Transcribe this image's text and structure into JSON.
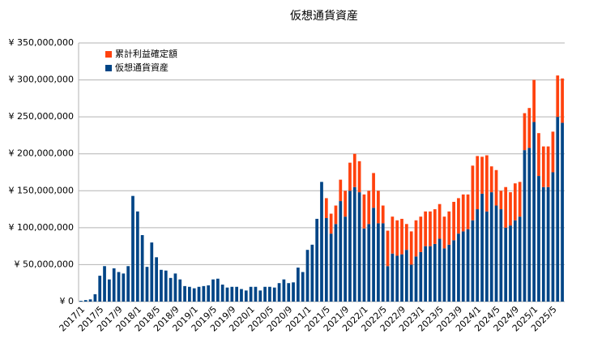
{
  "chart_data": {
    "type": "stacked_bar",
    "title": "仮想通貨資産",
    "categories": [
      "2017/1",
      null,
      null,
      null,
      "2017/5",
      null,
      null,
      null,
      "2017/9",
      null,
      null,
      null,
      "2018/1",
      null,
      null,
      null,
      "2018/5",
      null,
      null,
      null,
      "2018/9",
      null,
      null,
      null,
      "2019/1",
      null,
      null,
      null,
      "2019/5",
      null,
      null,
      null,
      "2019/9",
      null,
      null,
      null,
      "2020/1",
      null,
      null,
      null,
      "2020/5",
      null,
      null,
      null,
      "2020/9",
      null,
      null,
      null,
      "2021/1",
      null,
      null,
      null,
      "2021/5",
      null,
      null,
      null,
      "2021/9",
      null,
      null,
      null,
      "2022/1",
      null,
      null,
      null,
      "2022/5",
      null,
      null,
      null,
      "2022/9",
      null,
      null,
      null,
      "2023/1",
      null,
      null,
      null,
      "2023/5",
      null,
      null,
      null,
      "2023/9",
      null,
      null,
      null,
      "2024/1",
      null,
      null,
      null,
      "2024/5",
      null,
      null,
      null,
      "2024/9",
      null,
      null,
      null,
      "2025/1",
      null,
      null,
      null,
      "2025/5",
      null,
      null
    ],
    "series": [
      {
        "name": "仮想通貨資産",
        "color": "#004586",
        "values": [
          1000000,
          2000000,
          3000000,
          10000000,
          35000000,
          48000000,
          30000000,
          45000000,
          40000000,
          38000000,
          48000000,
          143000000,
          122000000,
          90000000,
          47000000,
          80000000,
          60000000,
          43000000,
          42000000,
          32000000,
          38000000,
          30000000,
          21000000,
          20000000,
          18000000,
          20000000,
          21000000,
          22000000,
          30000000,
          31000000,
          23000000,
          19000000,
          20000000,
          20000000,
          17000000,
          15000000,
          20000000,
          20000000,
          15000000,
          20000000,
          20000000,
          19000000,
          25000000,
          30000000,
          25000000,
          26000000,
          46000000,
          40000000,
          70000000,
          77000000,
          112000000,
          162000000,
          113000000,
          92000000,
          105000000,
          136000000,
          115000000,
          150000000,
          155000000,
          148000000,
          99000000,
          105000000,
          127000000,
          106000000,
          106000000,
          48000000,
          65000000,
          62000000,
          64000000,
          70000000,
          50000000,
          61000000,
          67000000,
          75000000,
          75000000,
          78000000,
          85000000,
          72000000,
          77000000,
          83000000,
          92000000,
          95000000,
          98000000,
          110000000,
          125000000,
          146000000,
          122000000,
          148000000,
          130000000,
          125000000,
          100000000,
          103000000,
          110000000,
          115000000,
          205000000,
          208000000,
          243000000,
          170000000,
          155000000,
          155000000,
          175000000,
          250000000,
          242000000
        ]
      },
      {
        "name": "累計利益確定額",
        "color": "#ff420e",
        "values": [
          0,
          0,
          0,
          0,
          0,
          0,
          0,
          0,
          0,
          0,
          0,
          0,
          0,
          0,
          0,
          0,
          0,
          0,
          0,
          0,
          0,
          0,
          0,
          0,
          0,
          0,
          0,
          0,
          0,
          0,
          0,
          0,
          0,
          0,
          0,
          0,
          0,
          0,
          0,
          0,
          0,
          0,
          0,
          0,
          0,
          0,
          0,
          0,
          0,
          0,
          0,
          0,
          27000000,
          27000000,
          25000000,
          29000000,
          35000000,
          38000000,
          45000000,
          42000000,
          46000000,
          45000000,
          47000000,
          44000000,
          24000000,
          48000000,
          50000000,
          48000000,
          48000000,
          35000000,
          45000000,
          49000000,
          48000000,
          47000000,
          47000000,
          47000000,
          47000000,
          43000000,
          45000000,
          52000000,
          48000000,
          50000000,
          47000000,
          74000000,
          72000000,
          50000000,
          76000000,
          35000000,
          48000000,
          25000000,
          55000000,
          45000000,
          50000000,
          47000000,
          50000000,
          54000000,
          57000000,
          58000000,
          55000000,
          55000000,
          55000000,
          56000000,
          60000000
        ]
      }
    ],
    "ylim": [
      0,
      350000000
    ],
    "yticks": [
      {
        "value": 0,
        "label": "¥ 0"
      },
      {
        "value": 50000000,
        "label": "¥ 50,000,000"
      },
      {
        "value": 100000000,
        "label": "¥ 100,000,000"
      },
      {
        "value": 150000000,
        "label": "¥ 150,000,000"
      },
      {
        "value": 200000000,
        "label": "¥ 200,000,000"
      },
      {
        "value": 250000000,
        "label": "¥ 250,000,000"
      },
      {
        "value": 300000000,
        "label": "¥ 300,000,000"
      },
      {
        "value": 350000000,
        "label": "¥ 350,000,000"
      }
    ],
    "grid": true,
    "legend": "top-left"
  }
}
